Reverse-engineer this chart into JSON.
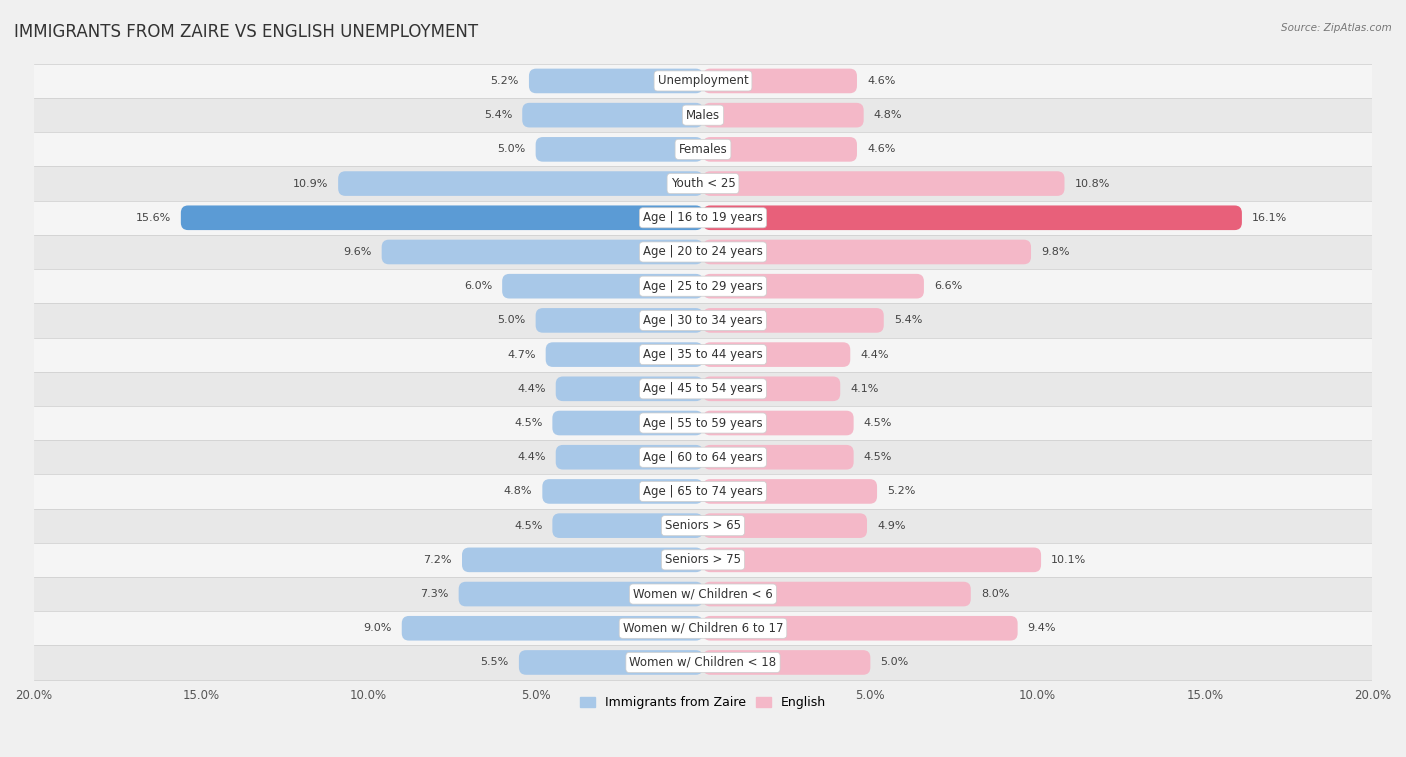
{
  "title": "IMMIGRANTS FROM ZAIRE VS ENGLISH UNEMPLOYMENT",
  "source": "Source: ZipAtlas.com",
  "categories": [
    "Unemployment",
    "Males",
    "Females",
    "Youth < 25",
    "Age | 16 to 19 years",
    "Age | 20 to 24 years",
    "Age | 25 to 29 years",
    "Age | 30 to 34 years",
    "Age | 35 to 44 years",
    "Age | 45 to 54 years",
    "Age | 55 to 59 years",
    "Age | 60 to 64 years",
    "Age | 65 to 74 years",
    "Seniors > 65",
    "Seniors > 75",
    "Women w/ Children < 6",
    "Women w/ Children 6 to 17",
    "Women w/ Children < 18"
  ],
  "left_values": [
    5.2,
    5.4,
    5.0,
    10.9,
    15.6,
    9.6,
    6.0,
    5.0,
    4.7,
    4.4,
    4.5,
    4.4,
    4.8,
    4.5,
    7.2,
    7.3,
    9.0,
    5.5
  ],
  "right_values": [
    4.6,
    4.8,
    4.6,
    10.8,
    16.1,
    9.8,
    6.6,
    5.4,
    4.4,
    4.1,
    4.5,
    4.5,
    5.2,
    4.9,
    10.1,
    8.0,
    9.4,
    5.0
  ],
  "left_color_normal": "#a8c8e8",
  "right_color_normal": "#f4b8c8",
  "left_color_highlight_row3": "#a8c8e8",
  "right_color_highlight_row3": "#f4b8c8",
  "left_color_highlight_row4": "#5b9bd5",
  "right_color_highlight_row4": "#e8607a",
  "highlight_rows": [
    3,
    4
  ],
  "xlim": 20.0,
  "bg_color_even": "#e8e8e8",
  "bg_color_odd": "#f5f5f5",
  "title_fontsize": 12,
  "label_fontsize": 8.5,
  "value_fontsize": 8,
  "legend_label_left": "Immigrants from Zaire",
  "legend_label_right": "English",
  "bar_height": 0.72
}
